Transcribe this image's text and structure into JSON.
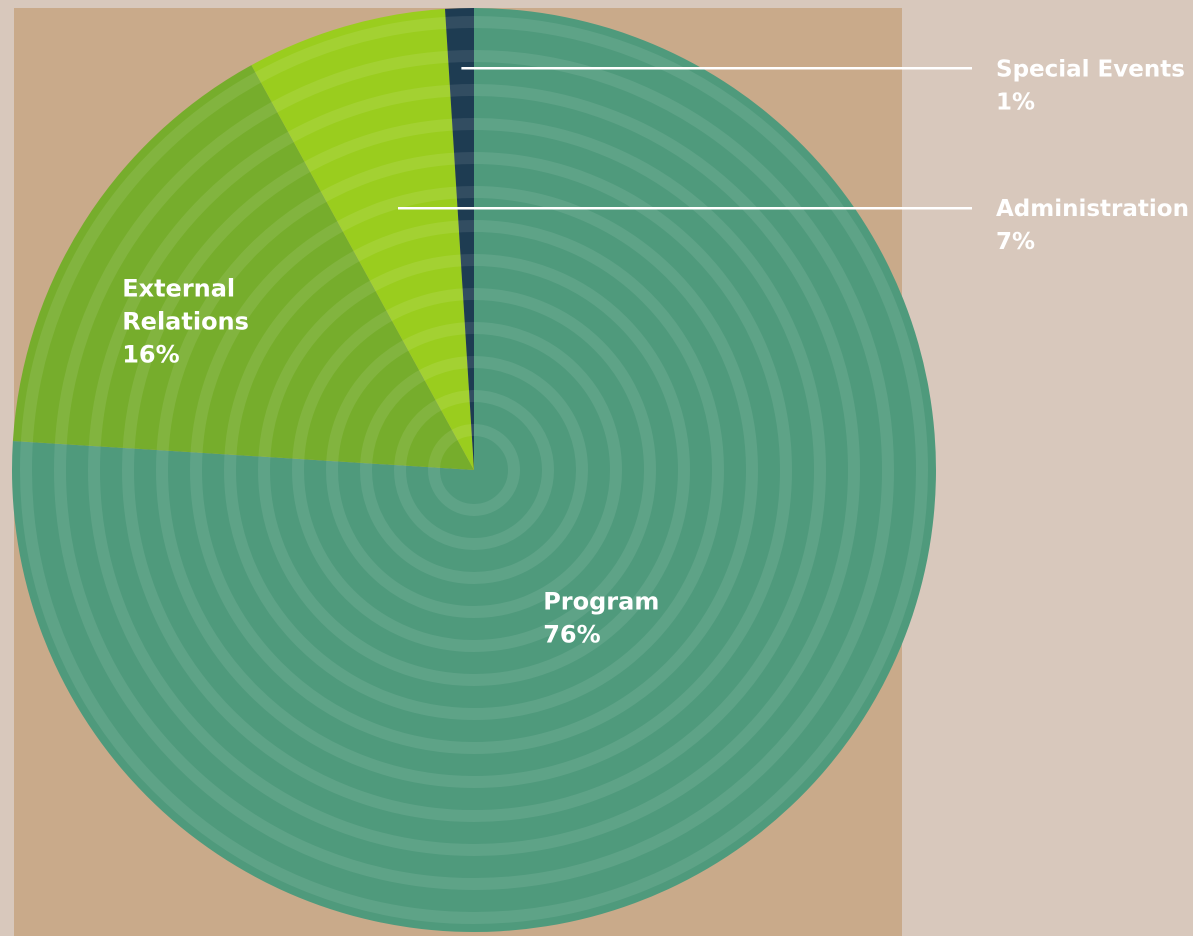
{
  "chart_data": {
    "type": "pie",
    "slices": [
      {
        "label_lines": [
          "Program",
          "76%"
        ],
        "value": 76,
        "color": "#4f9a7c",
        "label_style": "inside"
      },
      {
        "label_lines": [
          "External",
          "Relations",
          "16%"
        ],
        "value": 16,
        "color": "#76ad2c",
        "label_style": "inside"
      },
      {
        "label_lines": [
          "Administration",
          "7%"
        ],
        "value": 7,
        "color": "#9acd1e",
        "label_style": "callout"
      },
      {
        "label_lines": [
          "Special Events",
          "1%"
        ],
        "value": 1,
        "color": "#1e3c52",
        "label_style": "callout"
      }
    ]
  },
  "colors": {
    "page_background": "#d8c8bc",
    "panel_background": "#c9aa8a",
    "ring_overlay": "#ffffff",
    "callout_line": "#ffffff"
  }
}
